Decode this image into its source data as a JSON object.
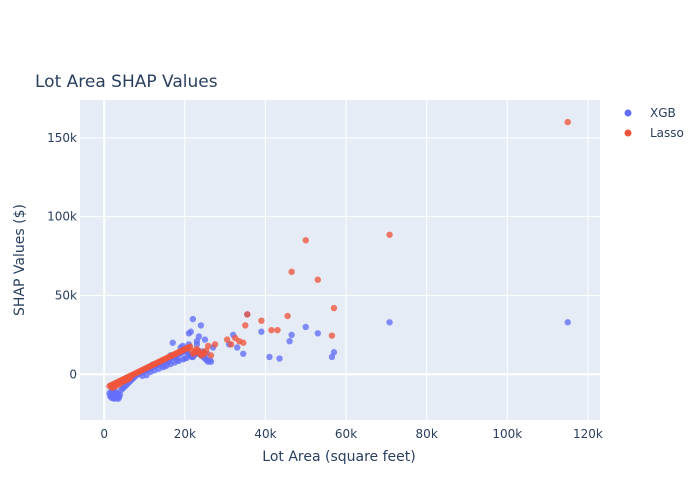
{
  "chart_data": {
    "type": "scatter",
    "title": "Lot Area SHAP Values",
    "xlabel": "Lot Area (square feet)",
    "ylabel": "SHAP Values ($)",
    "xlim": [
      -6000,
      123000
    ],
    "ylim": [
      -29000,
      174000
    ],
    "xticks": [
      0,
      20000,
      40000,
      60000,
      80000,
      100000,
      120000
    ],
    "xtick_labels": [
      "0",
      "20k",
      "40k",
      "60k",
      "80k",
      "100k",
      "120k"
    ],
    "yticks": [
      0,
      50000,
      100000,
      150000
    ],
    "ytick_labels": [
      "0",
      "50k",
      "100k",
      "150k"
    ],
    "grid": true,
    "legend_position": "top-right",
    "colors": {
      "plot_bg": "#e5ecf6",
      "grid": "#ffffff",
      "xgb": "#636efa",
      "lasso": "#ef553b"
    },
    "series": [
      {
        "name": "XGB",
        "x": [
          1300,
          1500,
          1700,
          1900,
          2100,
          2300,
          2500,
          2700,
          2900,
          3100,
          3300,
          3500,
          3700,
          3900,
          2200,
          2600,
          3000,
          3400,
          1800,
          2400,
          4200,
          4600,
          5000,
          5400,
          5800,
          6200,
          6600,
          7000,
          7400,
          7800,
          8200,
          8600,
          9000,
          9400,
          9800,
          10200,
          10600,
          11000,
          11400,
          11800,
          12200,
          12600,
          13000,
          13400,
          13800,
          14200,
          14600,
          15000,
          15400,
          15800,
          16200,
          16600,
          17000,
          17400,
          17800,
          18200,
          18600,
          19000,
          19400,
          19800,
          20200,
          20600,
          21000,
          21400,
          21800,
          22200,
          22600,
          23000,
          23400,
          23800,
          24200,
          24600,
          25000,
          25400,
          25800,
          26200,
          8500,
          9500,
          10500,
          11500,
          12500,
          13500,
          14500,
          15500,
          16500,
          17500,
          18500,
          19500,
          20500,
          21500,
          22500,
          23500,
          24500,
          12000,
          14000,
          16000,
          18000,
          20000,
          22000,
          24000,
          19000,
          21000,
          23000,
          21000,
          22000,
          24000,
          21500,
          23500,
          25000,
          27000,
          31000,
          32000,
          33000,
          34500,
          35500,
          39000,
          41000,
          43500,
          46000,
          46500,
          50000,
          53000,
          56500,
          57000,
          70800,
          115000,
          17000,
          19500,
          20500,
          23000,
          25500,
          26500,
          15000,
          16500,
          18000,
          13000,
          11000
        ],
        "y": [
          -12000,
          -14000,
          -13000,
          -15000,
          -14500,
          -13500,
          -15500,
          -14000,
          -15000,
          -13000,
          -14000,
          -15500,
          -14500,
          -13000,
          -11000,
          -12000,
          -11500,
          -12500,
          -10500,
          -9000,
          -10000,
          -9000,
          -8000,
          -7000,
          -6000,
          -5000,
          -4000,
          -3000,
          -2000,
          -1000,
          0,
          500,
          1000,
          1500,
          2000,
          2500,
          3000,
          3500,
          4000,
          4500,
          5000,
          5500,
          6000,
          6500,
          7000,
          7500,
          8000,
          8500,
          9000,
          9500,
          10000,
          10500,
          11000,
          11500,
          12000,
          12500,
          13000,
          13500,
          14000,
          14500,
          15000,
          14000,
          13000,
          12000,
          11000,
          12000,
          13000,
          14000,
          15000,
          13000,
          12000,
          11000,
          10000,
          9000,
          8000,
          9000,
          0,
          -1000,
          -500,
          1500,
          2500,
          3500,
          4500,
          5500,
          6500,
          7500,
          8500,
          9500,
          10500,
          11500,
          12500,
          13500,
          14500,
          6000,
          7000,
          8000,
          9000,
          10000,
          11000,
          12000,
          17000,
          19000,
          21000,
          26000,
          35000,
          31000,
          27000,
          24000,
          22000,
          17000,
          19000,
          25000,
          17000,
          13000,
          38000,
          27000,
          11000,
          10000,
          21000,
          25000,
          30000,
          26000,
          11000,
          14000,
          33000,
          33000,
          20000,
          18000,
          16000,
          19000,
          13000,
          8000,
          5000,
          12000,
          10000,
          6000,
          3000
        ]
      },
      {
        "name": "Lasso",
        "x": [
          1300,
          1700,
          2100,
          2500,
          2900,
          3300,
          3700,
          4100,
          4500,
          4900,
          5300,
          5700,
          6100,
          6500,
          6900,
          7300,
          7700,
          8100,
          8500,
          8900,
          9300,
          9700,
          10100,
          10500,
          10900,
          11300,
          11700,
          12100,
          12500,
          12900,
          13300,
          13700,
          14100,
          14500,
          14900,
          15300,
          15700,
          16100,
          16500,
          16900,
          17300,
          17700,
          18100,
          18500,
          18900,
          19300,
          19700,
          20100,
          20500,
          20900,
          21300,
          21700,
          22100,
          22500,
          22900,
          23300,
          23700,
          24100,
          24500,
          24900,
          25300,
          25800,
          26500,
          27500,
          30500,
          31500,
          32500,
          33500,
          34500,
          35000,
          35500,
          39000,
          41500,
          43000,
          45500,
          46500,
          50000,
          53000,
          56500,
          57000,
          70800,
          115000,
          2000,
          2400,
          2800,
          3200,
          3600,
          4000,
          4400,
          4800,
          5200,
          5600,
          6000,
          6400
        ],
        "y": [
          -7500,
          -7000,
          -6500,
          -6000,
          -5500,
          -5000,
          -4500,
          -4000,
          -3500,
          -3000,
          -2500,
          -2000,
          -1500,
          -1000,
          -500,
          0,
          500,
          1000,
          1500,
          2000,
          2500,
          3000,
          3500,
          4000,
          4500,
          5000,
          5500,
          6000,
          6500,
          7000,
          7500,
          8000,
          8500,
          9000,
          9500,
          10000,
          10500,
          11000,
          11500,
          12000,
          12500,
          13000,
          13500,
          14000,
          14500,
          15000,
          15500,
          16000,
          16500,
          17000,
          17500,
          15000,
          13000,
          14000,
          16000,
          15000,
          13000,
          12000,
          14000,
          13000,
          15000,
          18000,
          12000,
          19000,
          22000,
          19000,
          23000,
          21000,
          20000,
          31000,
          38000,
          34000,
          28000,
          28000,
          37000,
          65000,
          85000,
          60000,
          24500,
          42000,
          88500,
          160000,
          -8500,
          -8000,
          -7500,
          -6000,
          -6500,
          -5500,
          -5000,
          -4500,
          -4000,
          -3500,
          -3000,
          -2500
        ]
      }
    ]
  }
}
